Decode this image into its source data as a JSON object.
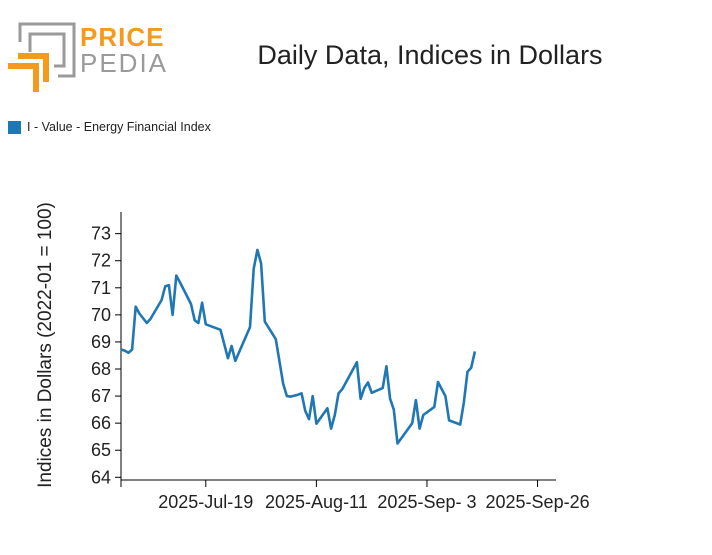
{
  "logo": {
    "line1": "PRICE",
    "line2": "PEDIA",
    "accent": "#f29b1d",
    "gray": "#9a9a9a"
  },
  "chart_data": {
    "type": "line",
    "title": "Daily Data, Indices in Dollars",
    "ylabel": "Indices in Dollars (2022-01 = 100)",
    "xlabel": "",
    "ylim": [
      63.9,
      73.8
    ],
    "yticks": [
      64,
      65,
      66,
      67,
      68,
      69,
      70,
      71,
      72,
      73
    ],
    "x_tick_labels": [
      {
        "label": "2025-Jul-19",
        "index": 23
      },
      {
        "label": "2025-Aug-11",
        "index": 53
      },
      {
        "label": "2025-Sep- 3",
        "index": 83
      },
      {
        "label": "2025-Sep-26",
        "index": 113
      }
    ],
    "legend_position": "top-left",
    "grid": false,
    "series": [
      {
        "name": "I - Value - Energy Financial Index",
        "color": "#1f77b4",
        "values": [
          [
            0,
            68.72
          ],
          [
            1,
            68.68
          ],
          [
            2,
            68.6
          ],
          [
            3,
            68.72
          ],
          [
            4,
            70.3
          ],
          [
            5,
            70.05
          ],
          [
            7,
            69.7
          ],
          [
            8,
            69.85
          ],
          [
            11,
            70.55
          ],
          [
            12,
            71.05
          ],
          [
            13,
            71.1
          ],
          [
            14,
            70.0
          ],
          [
            15,
            71.45
          ],
          [
            16,
            71.2
          ],
          [
            19,
            70.4
          ],
          [
            20,
            69.8
          ],
          [
            21,
            69.7
          ],
          [
            22,
            70.45
          ],
          [
            23,
            69.65
          ],
          [
            27,
            69.45
          ],
          [
            29,
            68.4
          ],
          [
            30,
            68.85
          ],
          [
            31,
            68.3
          ],
          [
            35,
            69.55
          ],
          [
            36,
            71.7
          ],
          [
            37,
            72.4
          ],
          [
            38,
            71.9
          ],
          [
            39,
            69.75
          ],
          [
            42,
            69.1
          ],
          [
            44,
            67.45
          ],
          [
            45,
            67.0
          ],
          [
            46,
            66.98
          ],
          [
            48,
            67.05
          ],
          [
            49,
            67.1
          ],
          [
            50,
            66.45
          ],
          [
            51,
            66.15
          ],
          [
            52,
            67.0
          ],
          [
            53,
            65.98
          ],
          [
            56,
            66.55
          ],
          [
            57,
            65.8
          ],
          [
            58,
            66.3
          ],
          [
            59,
            67.1
          ],
          [
            60,
            67.25
          ],
          [
            64,
            68.25
          ],
          [
            65,
            66.9
          ],
          [
            66,
            67.3
          ],
          [
            67,
            67.5
          ],
          [
            68,
            67.12
          ],
          [
            71,
            67.3
          ],
          [
            72,
            68.1
          ],
          [
            73,
            66.9
          ],
          [
            74,
            66.5
          ],
          [
            75,
            65.25
          ],
          [
            79,
            66.0
          ],
          [
            80,
            66.85
          ],
          [
            81,
            65.8
          ],
          [
            82,
            66.3
          ],
          [
            85,
            66.6
          ],
          [
            86,
            67.52
          ],
          [
            88,
            67.0
          ],
          [
            89,
            66.1
          ],
          [
            92,
            65.95
          ],
          [
            93,
            66.75
          ],
          [
            94,
            67.9
          ],
          [
            95,
            68.05
          ],
          [
            96,
            68.65
          ]
        ]
      }
    ]
  }
}
